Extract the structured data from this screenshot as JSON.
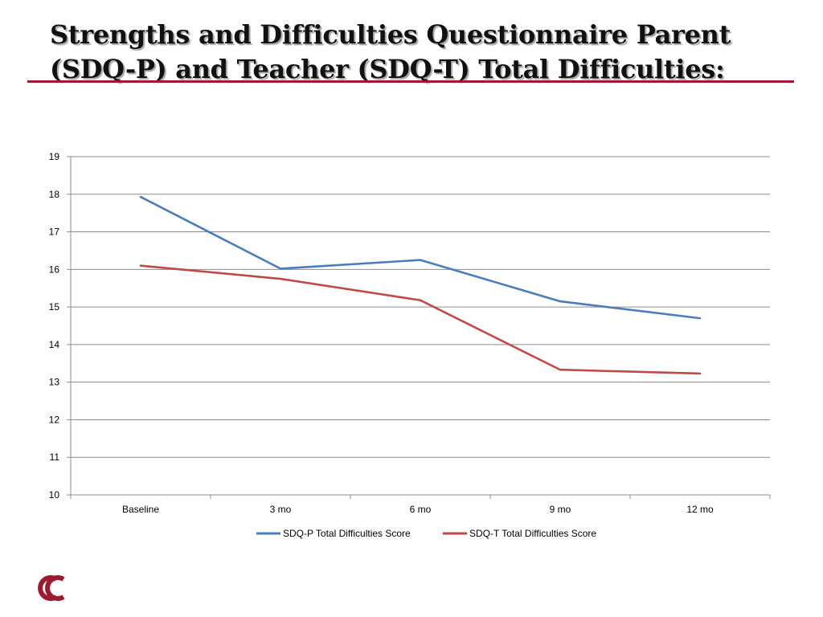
{
  "slide": {
    "title": "Strengths and Difficulties Questionnaire Parent (SDQ-P) and Teacher (SDQ-T) Total Difficulties:",
    "accent_color": "#9b1b30",
    "logo_icon": "maroon-double-c-logo"
  },
  "chart_data": {
    "type": "line",
    "title": "",
    "xlabel": "",
    "ylabel": "",
    "categories": [
      "Baseline",
      "3 mo",
      "6 mo",
      "9 mo",
      "12 mo"
    ],
    "ylim": [
      10,
      19
    ],
    "yticks": [
      10,
      11,
      12,
      13,
      14,
      15,
      16,
      17,
      18,
      19
    ],
    "grid": true,
    "legend_position": "bottom",
    "series": [
      {
        "name": "SDQ-P Total Difficulties Score",
        "color": "#4a7ebb",
        "values": [
          17.93,
          16.02,
          16.25,
          15.15,
          14.7
        ]
      },
      {
        "name": "SDQ-T Total Difficulties Score",
        "color": "#be4b48",
        "values": [
          16.1,
          15.75,
          15.18,
          13.33,
          13.23
        ]
      }
    ]
  }
}
